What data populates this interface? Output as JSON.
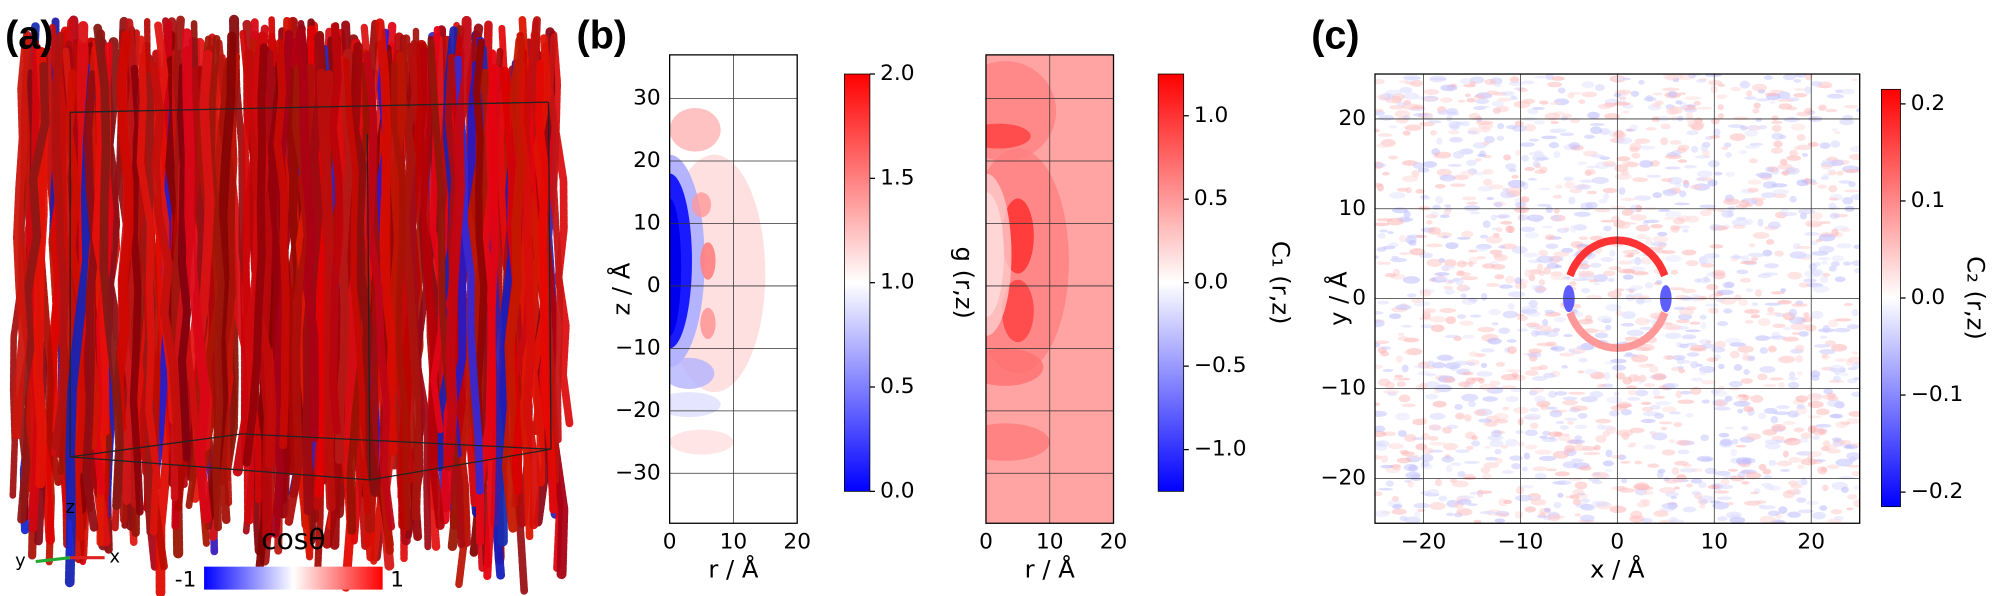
{
  "panel_labels": [
    "(a)",
    "(b)",
    "(c)"
  ],
  "snapshot": {
    "axis_labels": [
      "z",
      "y",
      "x"
    ],
    "colorbar": {
      "label": "cosθ",
      "clim": [
        -1,
        1
      ],
      "ticks": [
        -1,
        1
      ],
      "colormap": "bwr"
    }
  },
  "chart_data": [
    {
      "type": "heatmap",
      "xlabel": "r / Å",
      "ylabel": "z / Å",
      "xlim": [
        0,
        20
      ],
      "ylim": [
        -38,
        37
      ],
      "xticks": [
        0,
        10,
        20
      ],
      "yticks": [
        {
          "value": -30,
          "label": "−30"
        },
        {
          "value": -20,
          "label": "−20"
        },
        {
          "value": -10,
          "label": "−10"
        },
        0,
        10,
        20,
        30
      ],
      "ytick_labels": true,
      "grid": true,
      "colorbar": {
        "label": "g (r,z)",
        "clim": [
          0,
          2
        ],
        "colormap": "bwr",
        "ticks": [
          {
            "value": 0,
            "label": "0.0"
          },
          0.5,
          {
            "value": 1,
            "label": "1.0"
          },
          1.5,
          {
            "value": 2,
            "label": "2.0"
          }
        ]
      }
    },
    {
      "type": "heatmap",
      "xlabel": "r / Å",
      "xlim": [
        0,
        20
      ],
      "ylim": [
        -38,
        37
      ],
      "xticks": [
        0,
        10,
        20
      ],
      "yticks": [
        {
          "value": -30,
          "label": "−30"
        },
        {
          "value": -20,
          "label": "−20"
        },
        {
          "value": -10,
          "label": "−10"
        },
        0,
        10,
        20,
        30
      ],
      "ytick_labels": false,
      "grid": true,
      "colorbar": {
        "label": "C₁ (r,z)",
        "clim": [
          -1.25,
          1.25
        ],
        "colormap": "bwr",
        "ticks": [
          {
            "value": -1,
            "label": "−1.0"
          },
          {
            "value": -0.5,
            "label": "−0.5"
          },
          {
            "value": 0,
            "label": "0.0"
          },
          0.5,
          {
            "value": 1,
            "label": "1.0"
          }
        ]
      }
    },
    {
      "type": "heatmap",
      "xlabel": "x / Å",
      "ylabel": "y / Å",
      "xlim": [
        -25,
        25
      ],
      "ylim": [
        -25,
        25
      ],
      "xticks": [
        {
          "value": -20,
          "label": "−20"
        },
        {
          "value": -10,
          "label": "−10"
        },
        0,
        10,
        20
      ],
      "yticks": [
        {
          "value": -20,
          "label": "−20"
        },
        {
          "value": -10,
          "label": "−10"
        },
        0,
        10,
        20
      ],
      "ytick_labels": true,
      "grid": true,
      "colorbar": {
        "label": "C₂ (r,z)",
        "clim": [
          -0.215,
          0.215
        ],
        "colormap": "bwr",
        "ticks": [
          {
            "value": -0.2,
            "label": "−0.2"
          },
          {
            "value": -0.1,
            "label": "−0.1"
          },
          {
            "value": 0,
            "label": "0.0"
          },
          0.1,
          0.2
        ]
      }
    }
  ]
}
